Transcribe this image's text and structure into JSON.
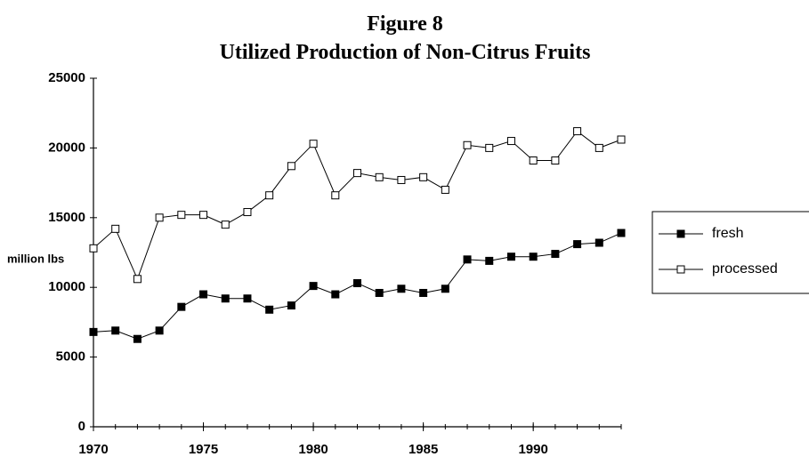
{
  "chart_data": {
    "type": "line",
    "title": "Figure 8",
    "subtitle": "Utilized Production of Non-Citrus Fruits",
    "y_label": "million lbs",
    "x": [
      1970,
      1971,
      1972,
      1973,
      1974,
      1975,
      1976,
      1977,
      1978,
      1979,
      1980,
      1981,
      1982,
      1983,
      1984,
      1985,
      1986,
      1987,
      1988,
      1989,
      1990,
      1991,
      1992,
      1993,
      1994
    ],
    "series": [
      {
        "name": "fresh",
        "color": "#000000",
        "marker": "filled-square",
        "values": [
          6800,
          6900,
          6300,
          6900,
          8600,
          9500,
          9200,
          9200,
          8400,
          8700,
          10100,
          9500,
          10300,
          9600,
          9900,
          9600,
          9900,
          12000,
          11900,
          12200,
          12200,
          12400,
          13100,
          13200,
          13900
        ]
      },
      {
        "name": "processed",
        "color": "#000000",
        "marker": "hollow-square",
        "values": [
          12800,
          14200,
          10600,
          15000,
          15200,
          15200,
          14500,
          15400,
          16600,
          18700,
          20300,
          16600,
          18200,
          17900,
          17700,
          17900,
          17000,
          20200,
          20000,
          20500,
          19100,
          19100,
          21200,
          20000,
          20600
        ]
      }
    ],
    "xlim": [
      1970,
      1994
    ],
    "xticks": [
      1970,
      1975,
      1980,
      1985,
      1990
    ],
    "ylim": [
      0,
      25000
    ],
    "yticks": [
      0,
      5000,
      10000,
      15000,
      20000,
      25000
    ],
    "grid": false,
    "legend": "right"
  }
}
